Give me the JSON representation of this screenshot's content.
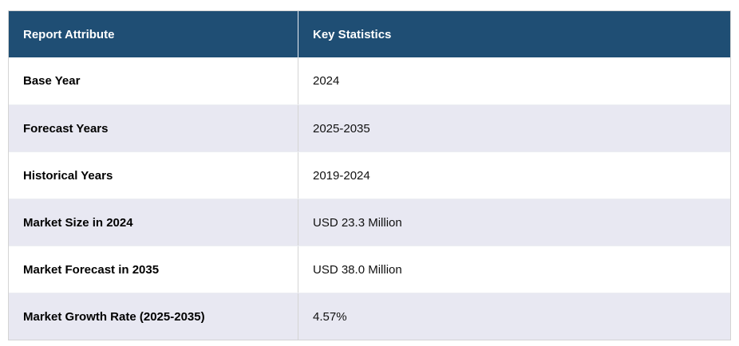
{
  "chart_data": {
    "type": "table",
    "title": "",
    "columns": [
      "Report Attribute",
      "Key Statistics"
    ],
    "rows": [
      [
        "Base Year",
        "2024"
      ],
      [
        "Forecast Years",
        "2025-2035"
      ],
      [
        "Historical Years",
        "2019-2024"
      ],
      [
        "Market Size in 2024",
        "USD 23.3 Million"
      ],
      [
        "Market Forecast in 2035",
        "USD 38.0 Million"
      ],
      [
        "Market Growth Rate (2025-2035)",
        "4.57%"
      ]
    ]
  },
  "colors": {
    "header_bg": "#1F4E74",
    "header_text": "#FFFFFF",
    "row_bg": "#FFFFFF",
    "row_alt_bg": "#E8E8F2",
    "border": "#D4D4D4",
    "body_text": "#000000"
  }
}
